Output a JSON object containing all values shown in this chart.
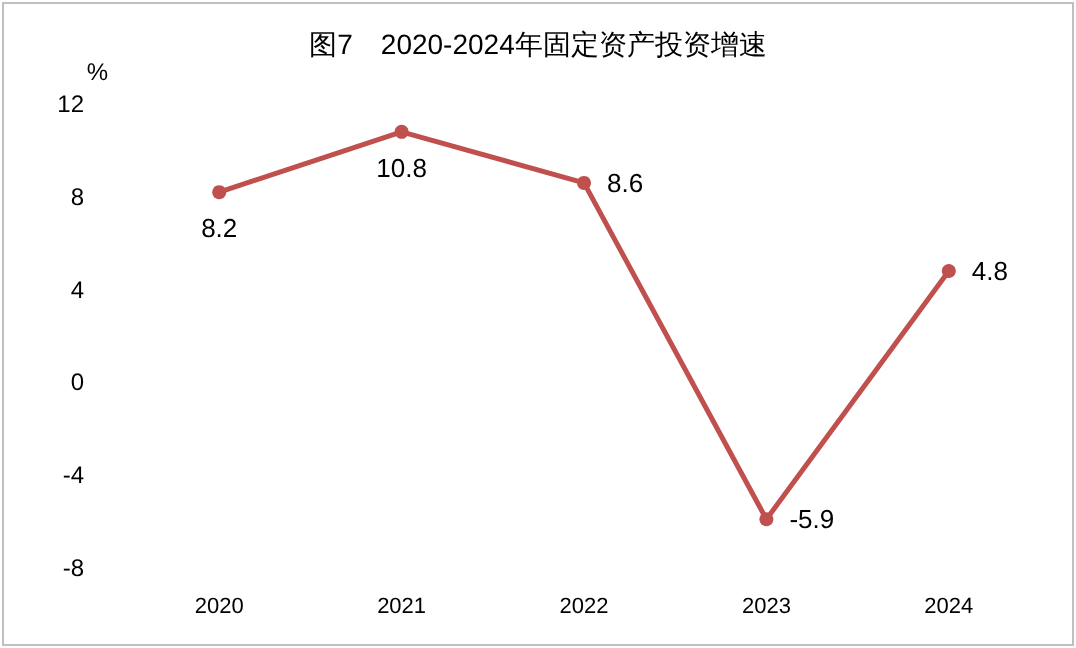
{
  "chart_data": {
    "type": "line",
    "title": "图7　2020-2024年固定资产投资增速",
    "ylabel": "%",
    "categories": [
      "2020",
      "2021",
      "2022",
      "2023",
      "2024"
    ],
    "series": [
      {
        "color": "#c0504d",
        "values": [
          8.2,
          10.8,
          8.6,
          -5.9,
          4.8
        ]
      }
    ],
    "ylim": [
      -8,
      12
    ],
    "yticks": [
      -8,
      -4,
      0,
      4,
      8,
      12
    ],
    "grid": false,
    "marker": "circle",
    "line_style": "solid",
    "data_labels": true
  }
}
